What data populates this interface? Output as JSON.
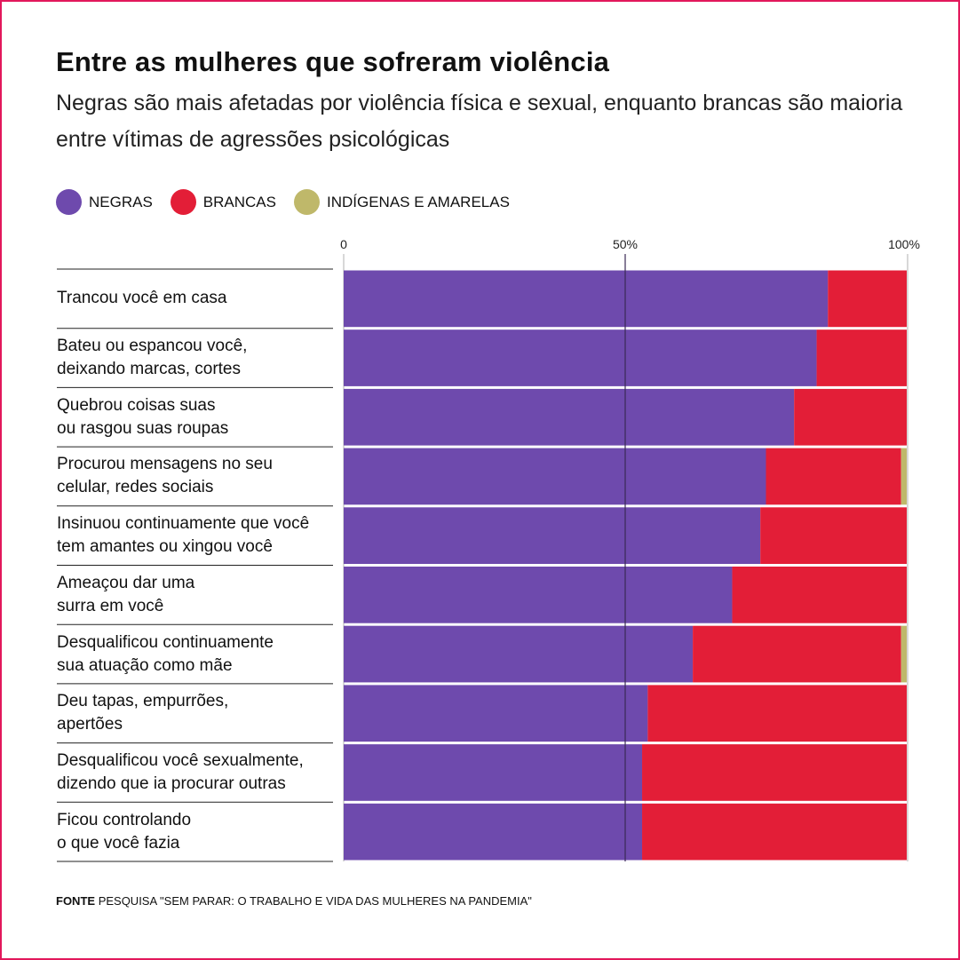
{
  "title": "Entre as mulheres que sofreram violência",
  "subtitle": "Negras são mais afetadas por violência física e sexual, enquanto brancas são maioria entre vítimas de agressões psicológicas",
  "source": {
    "label": "FONTE",
    "text": "PESQUISA \"SEM PARAR: O TRABALHO E VIDA DAS MULHERES NA PANDEMIA\""
  },
  "colors": {
    "negras": "#6e4aad",
    "brancas": "#e31e37",
    "indigenas": "#bfb86a",
    "border": "#e2185b"
  },
  "chart_data": {
    "type": "bar",
    "orientation": "horizontal",
    "stacked": true,
    "xlim": [
      0,
      100
    ],
    "ticks": [
      "0",
      "50%",
      "100%"
    ],
    "legend_position": "top-left",
    "categories": [
      [
        "Trancou você em casa"
      ],
      [
        "Bateu ou espancou você,",
        "deixando marcas, cortes"
      ],
      [
        "Quebrou coisas suas",
        "ou rasgou suas roupas"
      ],
      [
        "Procurou mensagens no seu",
        "celular, redes sociais"
      ],
      [
        "Insinuou continuamente que você",
        "tem amantes ou xingou você"
      ],
      [
        "Ameaçou dar uma",
        "surra em você"
      ],
      [
        "Desqualificou continuamente",
        "sua atuação como mãe"
      ],
      [
        "Deu tapas, empurrões,",
        "apertões"
      ],
      [
        "Desqualificou você sexualmente,",
        "dizendo que ia procurar outras"
      ],
      [
        "Ficou controlando",
        "o que você fazia"
      ]
    ],
    "series": [
      {
        "name": "NEGRAS",
        "values": [
          86,
          84,
          80,
          75,
          74,
          69,
          62,
          54,
          53,
          53
        ]
      },
      {
        "name": "BRANCAS",
        "values": [
          14,
          16,
          20,
          24,
          26,
          31,
          37,
          46,
          47,
          47
        ]
      },
      {
        "name": "INDÍGENAS E AMARELAS",
        "values": [
          0,
          0,
          0,
          1,
          0,
          0,
          1,
          0,
          0,
          0
        ]
      }
    ]
  }
}
